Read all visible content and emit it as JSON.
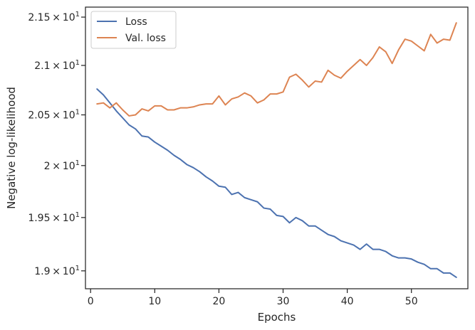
{
  "chart_data": {
    "type": "line",
    "title": "",
    "xlabel": "Epochs",
    "ylabel": "Negative log-likelihood",
    "xlim": [
      -0.8,
      58.8
    ],
    "ylim": [
      18.835,
      21.605
    ],
    "yscale": "log",
    "grid": false,
    "legend_position": "top-left",
    "x": [
      1,
      2,
      3,
      4,
      5,
      6,
      7,
      8,
      9,
      10,
      11,
      12,
      13,
      14,
      15,
      16,
      17,
      18,
      19,
      20,
      21,
      22,
      23,
      24,
      25,
      26,
      27,
      28,
      29,
      30,
      31,
      32,
      33,
      34,
      35,
      36,
      37,
      38,
      39,
      40,
      41,
      42,
      43,
      44,
      45,
      46,
      47,
      48,
      49,
      50,
      51,
      52,
      53,
      54,
      55,
      56,
      57
    ],
    "x_ticks": [
      {
        "value": 0,
        "label": "0"
      },
      {
        "value": 10,
        "label": "10"
      },
      {
        "value": 20,
        "label": "20"
      },
      {
        "value": 30,
        "label": "30"
      },
      {
        "value": 40,
        "label": "40"
      },
      {
        "value": 50,
        "label": "50"
      }
    ],
    "y_ticks": [
      {
        "value": 19.0,
        "base": "1.9",
        "exp": "1"
      },
      {
        "value": 19.5,
        "base": "1.95",
        "exp": "1"
      },
      {
        "value": 20.0,
        "base": "2",
        "exp": "1"
      },
      {
        "value": 20.5,
        "base": "2.05",
        "exp": "1"
      },
      {
        "value": 21.0,
        "base": "2.1",
        "exp": "1"
      },
      {
        "value": 21.5,
        "base": "2.15",
        "exp": "1"
      }
    ],
    "series": [
      {
        "name": "Loss",
        "color": "#4c72b0",
        "values": [
          20.76,
          20.7,
          20.62,
          20.54,
          20.47,
          20.4,
          20.36,
          20.29,
          20.28,
          20.23,
          20.19,
          20.15,
          20.1,
          20.06,
          20.01,
          19.98,
          19.94,
          19.89,
          19.85,
          19.8,
          19.79,
          19.72,
          19.74,
          19.69,
          19.67,
          19.65,
          19.59,
          19.58,
          19.52,
          19.51,
          19.45,
          19.5,
          19.47,
          19.42,
          19.42,
          19.38,
          19.34,
          19.32,
          19.28,
          19.26,
          19.24,
          19.2,
          19.25,
          19.2,
          19.2,
          19.18,
          19.14,
          19.12,
          19.12,
          19.11,
          19.08,
          19.06,
          19.02,
          19.02,
          18.98,
          18.98,
          18.94
        ]
      },
      {
        "name": "Val. loss",
        "color": "#dd8452",
        "values": [
          20.61,
          20.62,
          20.57,
          20.62,
          20.55,
          20.49,
          20.5,
          20.56,
          20.54,
          20.59,
          20.59,
          20.55,
          20.55,
          20.57,
          20.57,
          20.58,
          20.6,
          20.61,
          20.61,
          20.69,
          20.6,
          20.66,
          20.68,
          20.72,
          20.69,
          20.62,
          20.65,
          20.71,
          20.71,
          20.73,
          20.88,
          20.91,
          20.85,
          20.78,
          20.84,
          20.83,
          20.95,
          20.9,
          20.87,
          20.94,
          21.0,
          21.06,
          21.0,
          21.08,
          21.19,
          21.14,
          21.02,
          21.16,
          21.27,
          21.25,
          21.2,
          21.15,
          21.32,
          21.23,
          21.27,
          21.26,
          21.44
        ]
      }
    ]
  }
}
